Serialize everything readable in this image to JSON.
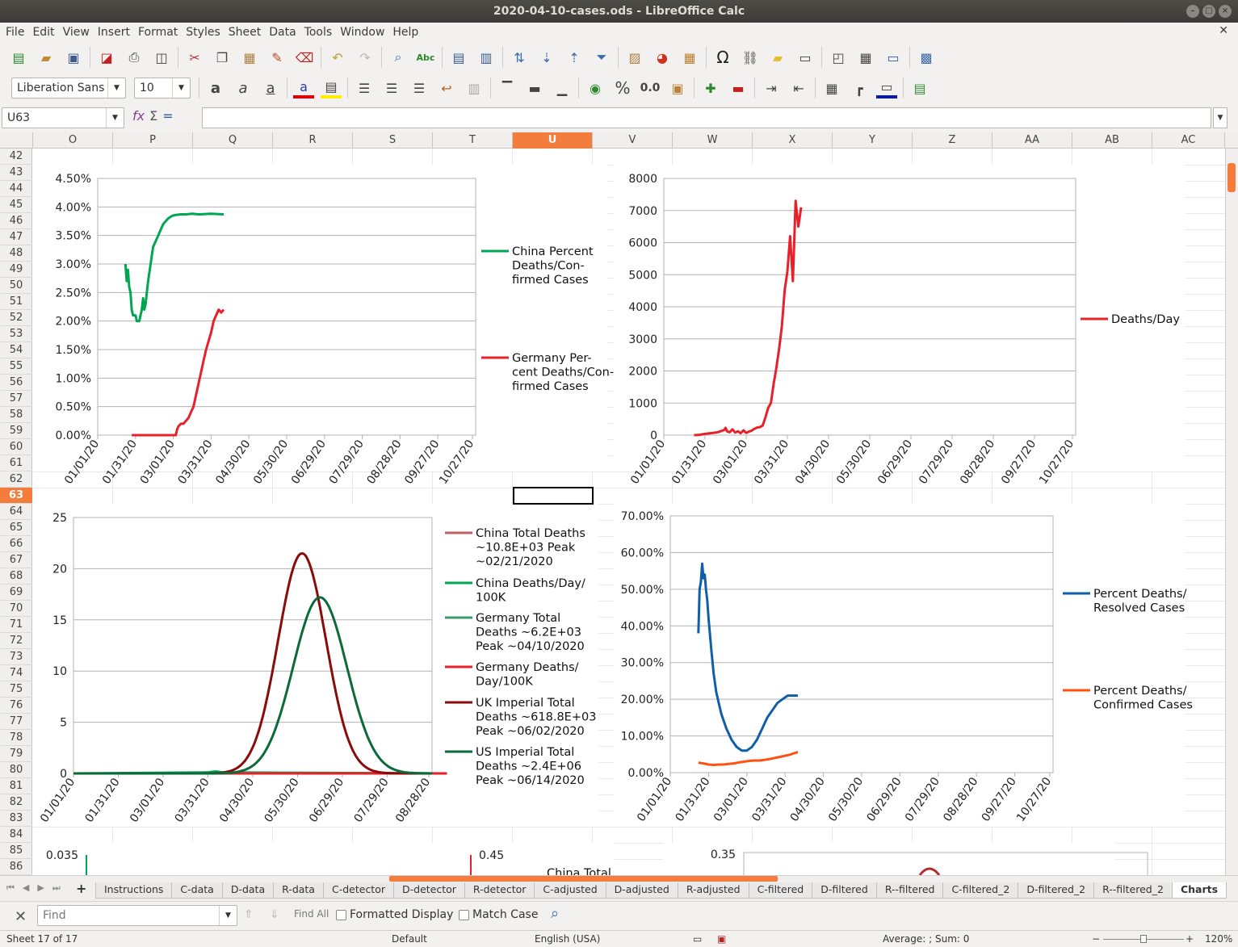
{
  "window": {
    "title": "2020-04-10-cases.ods - LibreOffice Calc"
  },
  "menu": [
    "File",
    "Edit",
    "View",
    "Insert",
    "Format",
    "Styles",
    "Sheet",
    "Data",
    "Tools",
    "Window",
    "Help"
  ],
  "format_bar": {
    "font_name": "Liberation Sans",
    "font_size": "10"
  },
  "formula_bar": {
    "cell_ref": "U63",
    "content": ""
  },
  "columns": [
    "O",
    "P",
    "Q",
    "R",
    "S",
    "T",
    "U",
    "V",
    "W",
    "X",
    "Y",
    "Z",
    "AA",
    "AB",
    "AC"
  ],
  "selected_column": "U",
  "rows": [
    "42",
    "43",
    "44",
    "45",
    "46",
    "47",
    "48",
    "49",
    "50",
    "51",
    "52",
    "53",
    "54",
    "55",
    "56",
    "57",
    "58",
    "59",
    "60",
    "61",
    "62",
    "63",
    "64",
    "65",
    "66",
    "67",
    "68",
    "69",
    "70",
    "71",
    "72",
    "73",
    "74",
    "75",
    "76",
    "77",
    "78",
    "79",
    "80",
    "81",
    "82",
    "83",
    "84",
    "85",
    "86"
  ],
  "selected_row": "63",
  "sheets": [
    "Instructions",
    "C-data",
    "D-data",
    "R-data",
    "C-detector",
    "D-detector",
    "R-detector",
    "C-adjusted",
    "D-adjusted",
    "R-adjusted",
    "C-filtered",
    "D-filtered",
    "R--filtered",
    "C-filtered_2",
    "D-filtered_2",
    "R--filtered_2",
    "Charts"
  ],
  "active_sheet": "Charts",
  "find_bar": {
    "placeholder": "Find",
    "find_all": "Find All",
    "formatted_display": "Formatted Display",
    "match_case": "Match Case"
  },
  "status_bar": {
    "sheet": "Sheet 17 of 17",
    "style": "Default",
    "language": "English (USA)",
    "sum": "Average: ; Sum: 0",
    "zoom": "120%"
  },
  "colors": {
    "accent": "#f47c3c",
    "china_green": "#00a650",
    "germany_red": "#e8202a",
    "blue": "#0f5fa8",
    "orange": "#ff5010",
    "dark_red": "#8b0a0a",
    "dark_green": "#0a6a3a"
  },
  "chart_data": [
    {
      "type": "line",
      "x_tick_labels": [
        "01/01/20",
        "01/31/20",
        "03/01/20",
        "03/31/20",
        "04/30/20",
        "05/30/20",
        "06/29/20",
        "07/29/20",
        "08/28/20",
        "09/27/20",
        "10/27/20"
      ],
      "y_tick_labels": [
        "0.00%",
        "0.50%",
        "1.00%",
        "1.50%",
        "2.00%",
        "2.50%",
        "3.00%",
        "3.50%",
        "4.00%",
        "4.50%"
      ],
      "ylim": [
        0,
        0.045
      ],
      "legend_position": "right",
      "series": [
        {
          "name": "China Percent Deaths/Con-firmed Cases",
          "color": "#00a650",
          "x": [
            22,
            23,
            24,
            25,
            26,
            27,
            28,
            29,
            30,
            31,
            32,
            33,
            34,
            35,
            36,
            37,
            38,
            39,
            40,
            42,
            44,
            46,
            48,
            50,
            52,
            54,
            56,
            58,
            60,
            62,
            66,
            70,
            75,
            80,
            90,
            100
          ],
          "y": [
            0.03,
            0.027,
            0.029,
            0.026,
            0.025,
            0.022,
            0.021,
            0.021,
            0.021,
            0.02,
            0.02,
            0.02,
            0.021,
            0.022,
            0.024,
            0.022,
            0.023,
            0.025,
            0.027,
            0.03,
            0.033,
            0.034,
            0.035,
            0.036,
            0.037,
            0.0375,
            0.038,
            0.0383,
            0.0385,
            0.0386,
            0.0387,
            0.0387,
            0.0388,
            0.0387,
            0.0388,
            0.0387
          ]
        },
        {
          "name": "Germany Per-cent Deaths/Con-firmed Cases",
          "color": "#e8202a",
          "x": [
            27,
            35,
            45,
            55,
            62,
            63,
            64,
            66,
            68,
            70,
            72,
            74,
            76,
            78,
            80,
            82,
            84,
            86,
            88,
            90,
            92,
            94,
            96,
            98,
            100
          ],
          "y": [
            0,
            0,
            0,
            0,
            0,
            0.001,
            0.0015,
            0.002,
            0.002,
            0.0025,
            0.003,
            0.004,
            0.005,
            0.007,
            0.009,
            0.011,
            0.013,
            0.015,
            0.0165,
            0.018,
            0.02,
            0.021,
            0.022,
            0.0215,
            0.022
          ]
        }
      ]
    },
    {
      "type": "line",
      "x_tick_labels": [
        "01/01/20",
        "01/31/20",
        "03/01/20",
        "03/31/20",
        "04/30/20",
        "05/30/20",
        "06/29/20",
        "07/29/20",
        "08/28/20",
        "09/27/20",
        "10/27/20"
      ],
      "y_tick_labels": [
        "0",
        "1000",
        "2000",
        "3000",
        "4000",
        "5000",
        "6000",
        "7000",
        "8000"
      ],
      "ylim": [
        0,
        8000
      ],
      "legend_position": "right",
      "series": [
        {
          "name": "Deaths/Day",
          "color": "#e8202a",
          "x": [
            22,
            26,
            30,
            34,
            38,
            40,
            42,
            44,
            45,
            46,
            48,
            50,
            52,
            54,
            56,
            58,
            60,
            62,
            64,
            66,
            68,
            70,
            72,
            74,
            76,
            78,
            80,
            82,
            84,
            86,
            88,
            90,
            92,
            94,
            96,
            98,
            100
          ],
          "y": [
            0,
            10,
            40,
            60,
            80,
            100,
            130,
            160,
            230,
            120,
            90,
            180,
            80,
            120,
            60,
            150,
            70,
            110,
            140,
            200,
            240,
            250,
            300,
            550,
            850,
            1000,
            1600,
            2100,
            2700,
            3400,
            4500,
            5100,
            6200,
            4800,
            7300,
            6500,
            7100
          ]
        }
      ]
    },
    {
      "type": "line",
      "x_tick_labels": [
        "01/01/20",
        "01/31/20",
        "03/01/20",
        "03/31/20",
        "04/30/20",
        "05/30/20",
        "06/29/20",
        "07/29/20",
        "08/28/20"
      ],
      "y_tick_labels": [
        "0",
        "5",
        "10",
        "15",
        "20",
        "25"
      ],
      "ylim": [
        0,
        25
      ],
      "legend_position": "right",
      "series": [
        {
          "name": "China Total Deaths ~10.8E+03 Peak ~02/21/2020",
          "color": "#c06060",
          "x": [
            0,
            250
          ],
          "y": [
            0,
            0
          ]
        },
        {
          "name": "China Deaths/Day/ 100K",
          "color": "#00a650",
          "x": [
            0,
            90,
            95,
            100,
            250
          ],
          "y": [
            0,
            0.1,
            0.2,
            0.1,
            0
          ]
        },
        {
          "name": "Germany Total Deaths ~6.2E+03 Peak ~04/10/2020",
          "color": "#3a9a6a",
          "x": [
            0,
            250
          ],
          "y": [
            0,
            0
          ]
        },
        {
          "name": "Germany Deaths/ Day/100K",
          "color": "#e8202a",
          "x": [
            0,
            250
          ],
          "y": [
            0,
            0
          ]
        },
        {
          "name": "UK Imperial Total Deaths ~618.8E+03 Peak ~06/02/2020",
          "color": "#8b0a0a",
          "mean": 153,
          "sd": 16,
          "peak": 21.5
        },
        {
          "name": "US Imperial Total Deaths ~2.4E+06 Peak ~06/14/2020",
          "color": "#0a6a3a",
          "mean": 165,
          "sd": 18,
          "peak": 17.2
        }
      ]
    },
    {
      "type": "line",
      "x_tick_labels": [
        "01/01/20",
        "01/31/20",
        "03/01/20",
        "03/31/20",
        "04/30/20",
        "05/30/20",
        "06/29/20",
        "07/29/20",
        "08/28/20",
        "09/27/20",
        "10/27/20"
      ],
      "y_tick_labels": [
        "0.00%",
        "10.00%",
        "20.00%",
        "30.00%",
        "40.00%",
        "50.00%",
        "60.00%",
        "70.00%"
      ],
      "ylim": [
        0,
        0.7
      ],
      "legend_position": "right",
      "series": [
        {
          "name": "Percent Deaths/ Resolved Cases",
          "color": "#0f5fa8",
          "x": [
            22,
            23,
            24,
            25,
            26,
            27,
            28,
            29,
            30,
            32,
            34,
            36,
            38,
            40,
            44,
            48,
            52,
            56,
            60,
            64,
            68,
            72,
            76,
            80,
            84,
            88,
            92,
            96,
            100
          ],
          "y": [
            0.38,
            0.5,
            0.52,
            0.57,
            0.53,
            0.54,
            0.5,
            0.47,
            0.42,
            0.34,
            0.27,
            0.22,
            0.19,
            0.16,
            0.12,
            0.09,
            0.07,
            0.06,
            0.06,
            0.07,
            0.09,
            0.12,
            0.15,
            0.17,
            0.19,
            0.2,
            0.21,
            0.21,
            0.21
          ]
        },
        {
          "name": "Percent Deaths/ Confirmed Cases",
          "color": "#ff5010",
          "x": [
            22,
            26,
            30,
            34,
            38,
            42,
            46,
            50,
            54,
            58,
            62,
            66,
            70,
            74,
            78,
            82,
            86,
            90,
            94,
            98,
            100
          ],
          "y": [
            0.027,
            0.025,
            0.022,
            0.021,
            0.022,
            0.022,
            0.024,
            0.025,
            0.028,
            0.03,
            0.032,
            0.033,
            0.033,
            0.035,
            0.037,
            0.04,
            0.043,
            0.046,
            0.049,
            0.054,
            0.056
          ]
        }
      ]
    },
    {
      "type": "line",
      "y_tick_labels": [
        "0.035"
      ],
      "series": []
    },
    {
      "type": "line",
      "y_tick_labels": [
        "0.45"
      ],
      "legend_entries": [
        "China Total"
      ],
      "series": []
    },
    {
      "type": "line",
      "y_tick_labels": [
        "0.35"
      ],
      "series": []
    }
  ]
}
